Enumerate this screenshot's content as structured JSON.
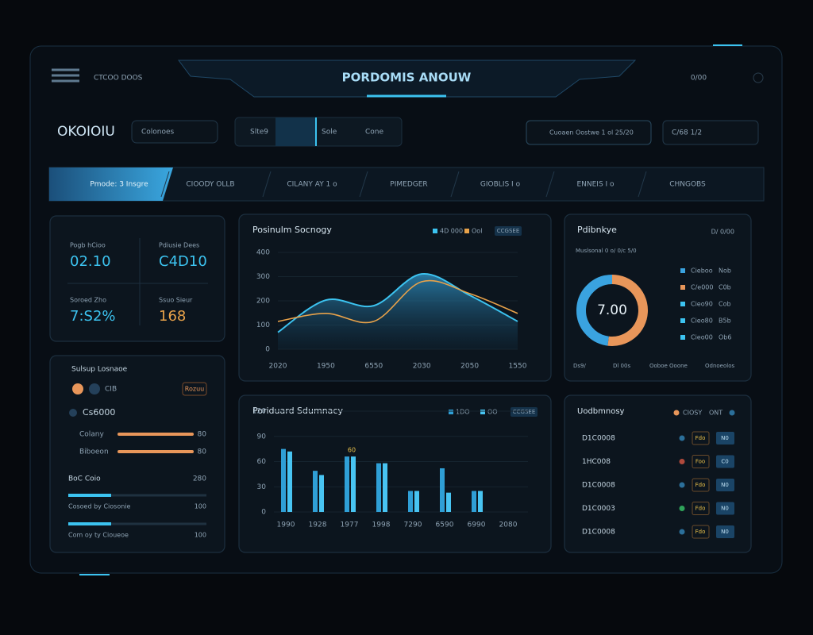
{
  "header": {
    "menu_label": "CTCOO DOOS",
    "title": "PORDOMIS ANOUW",
    "status": "0/00"
  },
  "toolbar": {
    "logo": "OKOIOIU",
    "search": "Colonoes",
    "tabs": [
      "Slte9",
      "Sole",
      "Cone"
    ],
    "filter": "Cuoaen Oostwe 1 ol 25/20",
    "select": "C/68 1/2"
  },
  "nav": [
    "Pmode: 3 Insgre",
    "CIOODY OLLB",
    "CILANY AY 1 o",
    "PIMEDGER",
    "GIOBLIS I o",
    "ENNEIS I o",
    "CHNGOBS"
  ],
  "stats": [
    {
      "label": "Pogb hCioo",
      "value": "02.10"
    },
    {
      "label": "Pdiusie Dees",
      "value": "C4D10"
    },
    {
      "label": "Soroed Zho",
      "value": "7:S2%"
    },
    {
      "label": "Ssuo Sieur",
      "value": "168"
    }
  ],
  "status_panel": {
    "title": "Sulsup Losnaoe",
    "toggle": "CIB",
    "badge": "Rozuu",
    "account": "Cs6000",
    "rows": [
      {
        "label": "Colany",
        "value": "80"
      },
      {
        "label": "Biboeon",
        "value": "80"
      }
    ],
    "section": "BoC Coio",
    "section_value": "280",
    "meters": [
      {
        "label": "Cosoed by Ciosonie",
        "value": "100"
      },
      {
        "label": "Com oy ty Cioueoe",
        "value": "100"
      }
    ]
  },
  "line_chart": {
    "type": "line",
    "title": "Posinulm Socnogy",
    "filter": "CCGSEE",
    "categories": [
      "2020",
      "1950",
      "6550",
      "2030",
      "2050",
      "1550"
    ],
    "series": [
      {
        "name": "4D 000",
        "color": "#3cc3f0",
        "values": [
          70,
          203,
          180,
          311,
          223,
          115
        ]
      },
      {
        "name": "Ool",
        "color": "#e8a24a",
        "values": [
          115,
          148,
          115,
          279,
          230,
          148
        ]
      }
    ],
    "ylim": [
      0,
      400
    ],
    "yticks": [
      0,
      100,
      200,
      300,
      400
    ]
  },
  "bar_chart": {
    "type": "bar",
    "title": "Poriduard Sdumnacy",
    "filter": "CCGSEE",
    "annotation": "60",
    "categories": [
      "1990",
      "1928",
      "1977",
      "1998",
      "7290",
      "6590",
      "6990",
      "2080"
    ],
    "series": [
      {
        "name": "1DO",
        "color": "#2f9fd6",
        "values": [
          75,
          49,
          66,
          58,
          25,
          52,
          25,
          null
        ]
      },
      {
        "name": "OO",
        "color": "#48c4f2",
        "values": [
          72,
          44,
          66,
          58,
          25,
          23,
          25,
          null
        ]
      }
    ],
    "ylim": [
      0,
      120
    ],
    "yticks": [
      0,
      30,
      60,
      90,
      120
    ]
  },
  "donut": {
    "type": "pie",
    "title": "Pdibnkye",
    "subtitle": "D/ 0/00",
    "filter": "Muslsonal 0 o/ 0/c 5/0",
    "center": "7.00",
    "values": [
      52,
      48
    ],
    "colors": [
      "#e8965a",
      "#3aa3e0"
    ],
    "legend": [
      {
        "label": "Cieboo",
        "value": "Nob",
        "color": "#3aa3e0"
      },
      {
        "label": "C/e000",
        "value": "C0b",
        "color": "#e8965a"
      },
      {
        "label": "Cieo90",
        "value": "Cob",
        "color": "#3cc3f0"
      },
      {
        "label": "Cieo80",
        "value": "B5b",
        "color": "#3cc3f0"
      },
      {
        "label": "Cieo00",
        "value": "Ob6",
        "color": "#3cc3f0"
      }
    ],
    "footer": [
      "Ds9/",
      "Dl 00s",
      "Ooboe Ooone",
      "Odnoeolos"
    ]
  },
  "table": {
    "title": "Uodbmnosy",
    "legend": [
      "CIOSY",
      "ONT"
    ],
    "rows": [
      {
        "id": "D1C0008",
        "color": "#2b6f9a",
        "status": "Fdo",
        "action": "N0"
      },
      {
        "id": "1HC008",
        "color": "#b04a3c",
        "status": "Foo",
        "action": "C0"
      },
      {
        "id": "D1C0008",
        "color": "#2b6f9a",
        "status": "Fdo",
        "action": "N0"
      },
      {
        "id": "D1C0003",
        "color": "#2fa35a",
        "status": "Fdo",
        "action": "N0"
      },
      {
        "id": "D1C0008",
        "color": "#2b6f9a",
        "status": "Fdo",
        "action": "N0"
      }
    ]
  }
}
